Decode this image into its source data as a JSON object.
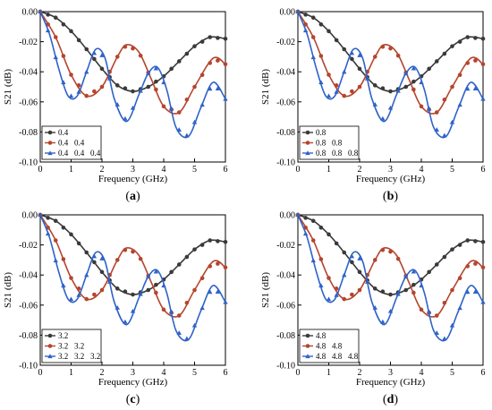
{
  "colors": {
    "black": "#3a3a3a",
    "red": "#b5452e",
    "blue": "#2f63c8",
    "axis": "#000000",
    "legend_border": "#000000"
  },
  "chart_data": [
    {
      "type": "line",
      "panel": "(a)",
      "panel_prefix": "(",
      "panel_letter": "a",
      "panel_suffix": ")",
      "xlabel": "Frequency (GHz)",
      "ylabel": "S21 (dB)",
      "xlim": [
        0,
        6
      ],
      "ylim": [
        -0.1,
        0.0
      ],
      "xticks": [
        "0",
        "1",
        "2",
        "3",
        "4",
        "5",
        "6"
      ],
      "yticks": [
        "0.00",
        "-0.02",
        "-0.04",
        "-0.06",
        "-0.08",
        "-0.10"
      ],
      "legend_position": "bottom-left",
      "series": [
        {
          "name": "0.4",
          "marker": "circle",
          "color": "#3a3a3a",
          "x": [
            0,
            0.5,
            1,
            1.5,
            2,
            2.5,
            3,
            3.5,
            4,
            4.5,
            5,
            5.5,
            6
          ],
          "y": [
            0,
            -0.004,
            -0.013,
            -0.025,
            -0.038,
            -0.049,
            -0.053,
            -0.05,
            -0.043,
            -0.033,
            -0.023,
            -0.017,
            -0.018
          ]
        },
        {
          "name": "0.4   0.4",
          "marker": "circle",
          "color": "#b5452e",
          "x": [
            0,
            0.5,
            1,
            1.5,
            2,
            2.5,
            2.8,
            3.2,
            3.6,
            4,
            4.5,
            5,
            5.6,
            6
          ],
          "y": [
            0,
            -0.017,
            -0.042,
            -0.056,
            -0.05,
            -0.03,
            -0.022,
            -0.027,
            -0.045,
            -0.063,
            -0.067,
            -0.05,
            -0.031,
            -0.035
          ]
        },
        {
          "name": "0.4   0.4   0.4",
          "marker": "triangle",
          "color": "#2f63c8",
          "x": [
            0,
            0.3,
            0.6,
            0.9,
            1.2,
            1.5,
            1.8,
            2.1,
            2.4,
            2.8,
            3.2,
            3.5,
            3.8,
            4.1,
            4.4,
            4.8,
            5.2,
            5.6,
            6
          ],
          "y": [
            0,
            -0.015,
            -0.038,
            -0.056,
            -0.056,
            -0.04,
            -0.025,
            -0.031,
            -0.058,
            -0.073,
            -0.055,
            -0.041,
            -0.037,
            -0.052,
            -0.077,
            -0.083,
            -0.064,
            -0.047,
            -0.058
          ]
        }
      ]
    },
    {
      "type": "line",
      "panel": "(b)",
      "panel_prefix": "(",
      "panel_letter": "b",
      "panel_suffix": ")",
      "xlabel": "Frequency (GHz)",
      "ylabel": "S21 (dB)",
      "xlim": [
        0,
        6
      ],
      "ylim": [
        -0.1,
        0.0
      ],
      "xticks": [
        "0",
        "1",
        "2",
        "3",
        "4",
        "5",
        "6"
      ],
      "yticks": [
        "0.00",
        "-0.02",
        "-0.04",
        "-0.06",
        "-0.08",
        "-0.10"
      ],
      "legend_position": "bottom-left",
      "series": [
        {
          "name": "0.8",
          "marker": "circle",
          "color": "#3a3a3a",
          "x": [
            0,
            0.5,
            1,
            1.5,
            2,
            2.5,
            3,
            3.5,
            4,
            4.5,
            5,
            5.5,
            6
          ],
          "y": [
            0,
            -0.004,
            -0.013,
            -0.025,
            -0.038,
            -0.049,
            -0.053,
            -0.05,
            -0.043,
            -0.033,
            -0.023,
            -0.017,
            -0.018
          ]
        },
        {
          "name": "0.8   0.8",
          "marker": "circle",
          "color": "#b5452e",
          "x": [
            0,
            0.5,
            1,
            1.5,
            2,
            2.5,
            2.8,
            3.2,
            3.6,
            4,
            4.5,
            5,
            5.6,
            6
          ],
          "y": [
            0,
            -0.017,
            -0.042,
            -0.056,
            -0.05,
            -0.03,
            -0.022,
            -0.027,
            -0.045,
            -0.063,
            -0.067,
            -0.05,
            -0.031,
            -0.035
          ]
        },
        {
          "name": "0.8   0.8   0.8",
          "marker": "triangle",
          "color": "#2f63c8",
          "x": [
            0,
            0.3,
            0.6,
            0.9,
            1.2,
            1.5,
            1.8,
            2.1,
            2.4,
            2.8,
            3.2,
            3.5,
            3.8,
            4.1,
            4.4,
            4.8,
            5.2,
            5.6,
            6
          ],
          "y": [
            0,
            -0.015,
            -0.038,
            -0.056,
            -0.056,
            -0.04,
            -0.025,
            -0.031,
            -0.058,
            -0.073,
            -0.055,
            -0.041,
            -0.037,
            -0.052,
            -0.077,
            -0.083,
            -0.064,
            -0.047,
            -0.058
          ]
        }
      ]
    },
    {
      "type": "line",
      "panel": "(c)",
      "panel_prefix": "(",
      "panel_letter": "c",
      "panel_suffix": ")",
      "xlabel": "Frequency (GHz)",
      "ylabel": "S21 (dB)",
      "xlim": [
        0,
        6
      ],
      "ylim": [
        -0.1,
        0.0
      ],
      "xticks": [
        "0",
        "1",
        "2",
        "3",
        "4",
        "5",
        "6"
      ],
      "yticks": [
        "0.00",
        "-0.02",
        "-0.04",
        "-0.06",
        "-0.08",
        "-0.10"
      ],
      "legend_position": "bottom-left",
      "series": [
        {
          "name": "3.2",
          "marker": "circle",
          "color": "#3a3a3a",
          "x": [
            0,
            0.5,
            1,
            1.5,
            2,
            2.5,
            3,
            3.5,
            4,
            4.5,
            5,
            5.5,
            6
          ],
          "y": [
            0,
            -0.004,
            -0.013,
            -0.025,
            -0.038,
            -0.049,
            -0.053,
            -0.05,
            -0.043,
            -0.033,
            -0.023,
            -0.017,
            -0.018
          ]
        },
        {
          "name": "3.2   3.2",
          "marker": "circle",
          "color": "#b5452e",
          "x": [
            0,
            0.5,
            1,
            1.5,
            2,
            2.5,
            2.8,
            3.2,
            3.6,
            4,
            4.5,
            5,
            5.6,
            6
          ],
          "y": [
            0,
            -0.017,
            -0.042,
            -0.056,
            -0.05,
            -0.03,
            -0.022,
            -0.027,
            -0.045,
            -0.063,
            -0.067,
            -0.05,
            -0.031,
            -0.035
          ]
        },
        {
          "name": "3.2   3.2   3.2",
          "marker": "triangle",
          "color": "#2f63c8",
          "x": [
            0,
            0.3,
            0.6,
            0.9,
            1.2,
            1.5,
            1.8,
            2.1,
            2.4,
            2.8,
            3.2,
            3.5,
            3.8,
            4.1,
            4.4,
            4.8,
            5.2,
            5.6,
            6
          ],
          "y": [
            0,
            -0.015,
            -0.038,
            -0.056,
            -0.056,
            -0.04,
            -0.025,
            -0.031,
            -0.058,
            -0.073,
            -0.055,
            -0.041,
            -0.037,
            -0.052,
            -0.077,
            -0.083,
            -0.064,
            -0.047,
            -0.058
          ]
        }
      ]
    },
    {
      "type": "line",
      "panel": "(d)",
      "panel_prefix": "(",
      "panel_letter": "d",
      "panel_suffix": ")",
      "xlabel": "Frequency (GHz)",
      "ylabel": "S21 (dB)",
      "xlim": [
        0,
        6
      ],
      "ylim": [
        -0.1,
        0.0
      ],
      "xticks": [
        "0",
        "1",
        "2",
        "3",
        "4",
        "5",
        "6"
      ],
      "yticks": [
        "0.00",
        "-0.02",
        "-0.04",
        "-0.06",
        "-0.08",
        "-0.10"
      ],
      "legend_position": "bottom-left",
      "series": [
        {
          "name": "4.8",
          "marker": "circle",
          "color": "#3a3a3a",
          "x": [
            0,
            0.5,
            1,
            1.5,
            2,
            2.5,
            3,
            3.5,
            4,
            4.5,
            5,
            5.5,
            6
          ],
          "y": [
            0,
            -0.004,
            -0.013,
            -0.025,
            -0.038,
            -0.049,
            -0.053,
            -0.05,
            -0.043,
            -0.033,
            -0.023,
            -0.017,
            -0.018
          ]
        },
        {
          "name": "4.8   4.8",
          "marker": "circle",
          "color": "#b5452e",
          "x": [
            0,
            0.5,
            1,
            1.5,
            2,
            2.5,
            2.8,
            3.2,
            3.6,
            4,
            4.5,
            5,
            5.6,
            6
          ],
          "y": [
            0,
            -0.017,
            -0.042,
            -0.056,
            -0.05,
            -0.03,
            -0.022,
            -0.027,
            -0.045,
            -0.063,
            -0.067,
            -0.05,
            -0.031,
            -0.035
          ]
        },
        {
          "name": "4.8   4.8   4.8",
          "marker": "triangle",
          "color": "#2f63c8",
          "x": [
            0,
            0.3,
            0.6,
            0.9,
            1.2,
            1.5,
            1.8,
            2.1,
            2.4,
            2.8,
            3.2,
            3.5,
            3.8,
            4.1,
            4.4,
            4.8,
            5.2,
            5.6,
            6
          ],
          "y": [
            0,
            -0.015,
            -0.038,
            -0.056,
            -0.056,
            -0.04,
            -0.025,
            -0.031,
            -0.058,
            -0.073,
            -0.055,
            -0.041,
            -0.037,
            -0.052,
            -0.077,
            -0.083,
            -0.064,
            -0.047,
            -0.058
          ]
        }
      ]
    }
  ]
}
